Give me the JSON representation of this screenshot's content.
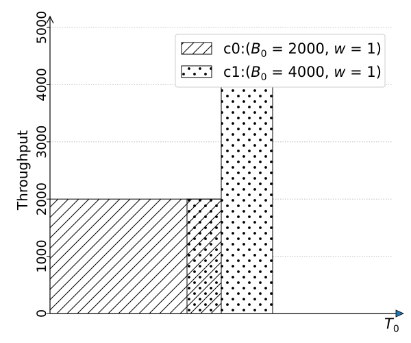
{
  "chart_data": {
    "type": "bar",
    "title": "",
    "xlabel": "T_0",
    "ylabel": "Throughput",
    "ylim": [
      0,
      5000
    ],
    "yticks": [
      0,
      1000,
      2000,
      3000,
      4000,
      5000
    ],
    "ytick_labels": [
      "0",
      "1000",
      "2000",
      "3000",
      "4000",
      "5000"
    ],
    "grid": "y-dotted",
    "legend_position": "top-right",
    "series": [
      {
        "name": "c0:(B_0 = 2000, w = 1)",
        "legend_label": {
          "prefix": "c0:(",
          "var": "B",
          "sub": "0",
          "eq": " = 2000, ",
          "w": "w",
          "suffix": " = 1)"
        },
        "pattern": "hatch-diagonal",
        "segments": [
          {
            "t_start": 0,
            "t_end": 4,
            "value": 2000
          },
          {
            "t_start": 4,
            "t_end": 5,
            "value": 2000
          }
        ]
      },
      {
        "name": "c1:(B_0 = 4000, w = 1)",
        "legend_label": {
          "prefix": "c1:(",
          "var": "B",
          "sub": "0",
          "eq": " = 4000, ",
          "w": "w",
          "suffix": " = 1)"
        },
        "pattern": "dots",
        "segments": [
          {
            "t_start": 4,
            "t_end": 5,
            "value": 2000
          },
          {
            "t_start": 5,
            "t_end": 6.5,
            "value": 4000
          }
        ]
      }
    ],
    "xlim": [
      0,
      10
    ],
    "xlabel_parts": {
      "var": "T",
      "sub": "0"
    },
    "colors": {
      "edge": "#000000",
      "fill": "#ffffff",
      "grid": "#b0b0b0",
      "arrow": "#1f77b4"
    }
  }
}
